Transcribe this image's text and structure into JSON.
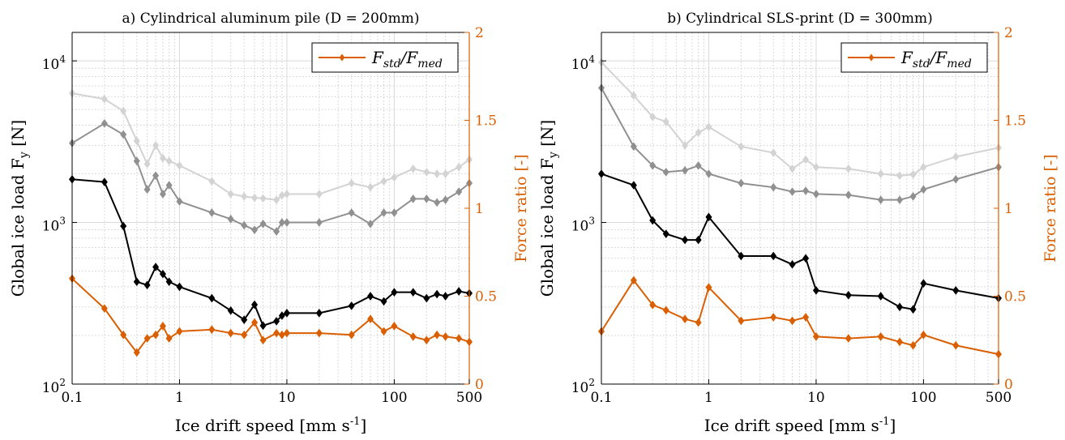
{
  "chart_data": [
    {
      "type": "line",
      "title": "a) Cylindrical aluminum pile (D = 200mm)",
      "xlabel": "Ice drift speed [mm s-1]",
      "ylabel": "Global ice load Fy [N]",
      "ylabel_right": "Force ratio [-]",
      "x_scale": "log",
      "y_scale": "log",
      "xlim": [
        0.1,
        500
      ],
      "ylim": [
        100,
        15000
      ],
      "ylim_right": [
        0,
        2
      ],
      "x_ticks": [
        "0.1",
        "1",
        "10",
        "100",
        "500"
      ],
      "y_ticks": [
        "10",
        "10",
        "10"
      ],
      "y_tick_exponents": [
        "2",
        "3",
        "4"
      ],
      "y_right_ticks": [
        "0",
        "0.5",
        "1",
        "1.5",
        "2"
      ],
      "grid": true,
      "legend": {
        "position": "top-right",
        "entries": [
          "Fstd/Fmed"
        ]
      },
      "series": [
        {
          "axis": "left",
          "color": "#d3d3d3",
          "marker": "diamond",
          "points": [
            [
              0.1,
              6300
            ],
            [
              0.2,
              5800
            ],
            [
              0.3,
              4900
            ],
            [
              0.4,
              3200
            ],
            [
              0.5,
              2300
            ],
            [
              0.6,
              3000
            ],
            [
              0.7,
              2500
            ],
            [
              0.8,
              2400
            ],
            [
              1,
              2250
            ],
            [
              2,
              1800
            ],
            [
              3,
              1500
            ],
            [
              4,
              1450
            ],
            [
              5,
              1420
            ],
            [
              6,
              1410
            ],
            [
              8,
              1380
            ],
            [
              9,
              1470
            ],
            [
              10,
              1500
            ],
            [
              20,
              1500
            ],
            [
              40,
              1750
            ],
            [
              60,
              1650
            ],
            [
              80,
              1800
            ],
            [
              100,
              1900
            ],
            [
              150,
              2150
            ],
            [
              200,
              2050
            ],
            [
              250,
              2000
            ],
            [
              300,
              2000
            ],
            [
              400,
              2200
            ],
            [
              500,
              2450
            ]
          ]
        },
        {
          "axis": "left",
          "color": "#909090",
          "marker": "diamond",
          "points": [
            [
              0.1,
              3100
            ],
            [
              0.2,
              4100
            ],
            [
              0.3,
              3500
            ],
            [
              0.4,
              2400
            ],
            [
              0.5,
              1600
            ],
            [
              0.6,
              1950
            ],
            [
              0.7,
              1500
            ],
            [
              0.8,
              1700
            ],
            [
              1,
              1350
            ],
            [
              2,
              1150
            ],
            [
              3,
              1050
            ],
            [
              4,
              960
            ],
            [
              5,
              900
            ],
            [
              6,
              980
            ],
            [
              8,
              880
            ],
            [
              9,
              1000
            ],
            [
              10,
              1000
            ],
            [
              20,
              1000
            ],
            [
              40,
              1150
            ],
            [
              60,
              980
            ],
            [
              80,
              1150
            ],
            [
              100,
              1150
            ],
            [
              150,
              1400
            ],
            [
              200,
              1400
            ],
            [
              250,
              1330
            ],
            [
              300,
              1380
            ],
            [
              400,
              1550
            ],
            [
              500,
              1750
            ]
          ]
        },
        {
          "axis": "left",
          "color": "#000000",
          "marker": "diamond",
          "points": [
            [
              0.1,
              1850
            ],
            [
              0.2,
              1780
            ],
            [
              0.3,
              950
            ],
            [
              0.4,
              430
            ],
            [
              0.5,
              410
            ],
            [
              0.6,
              530
            ],
            [
              0.7,
              480
            ],
            [
              0.8,
              430
            ],
            [
              1,
              400
            ],
            [
              2,
              340
            ],
            [
              3,
              285
            ],
            [
              4,
              250
            ],
            [
              5,
              310
            ],
            [
              6,
              230
            ],
            [
              8,
              245
            ],
            [
              9,
              265
            ],
            [
              10,
              275
            ],
            [
              20,
              275
            ],
            [
              40,
              305
            ],
            [
              60,
              350
            ],
            [
              80,
              325
            ],
            [
              100,
              370
            ],
            [
              150,
              370
            ],
            [
              200,
              340
            ],
            [
              250,
              360
            ],
            [
              300,
              350
            ],
            [
              400,
              375
            ],
            [
              500,
              365
            ]
          ]
        },
        {
          "axis": "right",
          "name": "Fstd/Fmed",
          "color": "#d95f02",
          "marker": "diamond",
          "points": [
            [
              0.1,
              0.6
            ],
            [
              0.2,
              0.43
            ],
            [
              0.3,
              0.28
            ],
            [
              0.4,
              0.18
            ],
            [
              0.5,
              0.26
            ],
            [
              0.6,
              0.28
            ],
            [
              0.7,
              0.33
            ],
            [
              0.8,
              0.26
            ],
            [
              1,
              0.3
            ],
            [
              2,
              0.31
            ],
            [
              3,
              0.29
            ],
            [
              4,
              0.28
            ],
            [
              5,
              0.35
            ],
            [
              6,
              0.25
            ],
            [
              8,
              0.29
            ],
            [
              9,
              0.28
            ],
            [
              10,
              0.29
            ],
            [
              20,
              0.29
            ],
            [
              40,
              0.28
            ],
            [
              60,
              0.37
            ],
            [
              80,
              0.3
            ],
            [
              100,
              0.33
            ],
            [
              150,
              0.27
            ],
            [
              200,
              0.25
            ],
            [
              250,
              0.28
            ],
            [
              300,
              0.27
            ],
            [
              400,
              0.26
            ],
            [
              500,
              0.24
            ]
          ]
        }
      ]
    },
    {
      "type": "line",
      "title": "b) Cylindrical SLS-print (D = 300mm)",
      "xlabel": "Ice drift speed [mm s-1]",
      "ylabel": "Global ice load Fy [N]",
      "ylabel_right": "Force ratio [-]",
      "x_scale": "log",
      "y_scale": "log",
      "xlim": [
        0.1,
        500
      ],
      "ylim": [
        100,
        15000
      ],
      "ylim_right": [
        0,
        2
      ],
      "x_ticks": [
        "0.1",
        "1",
        "10",
        "100",
        "500"
      ],
      "y_ticks": [
        "10",
        "10",
        "10"
      ],
      "y_tick_exponents": [
        "2",
        "3",
        "4"
      ],
      "y_right_ticks": [
        "0",
        "0.5",
        "1",
        "1.5",
        "2"
      ],
      "grid": true,
      "legend": {
        "position": "top-right",
        "entries": [
          "Fstd/Fmed"
        ]
      },
      "series": [
        {
          "axis": "left",
          "color": "#d3d3d3",
          "marker": "diamond",
          "points": [
            [
              0.1,
              9800
            ],
            [
              0.2,
              6100
            ],
            [
              0.3,
              4500
            ],
            [
              0.4,
              4200
            ],
            [
              0.6,
              3000
            ],
            [
              0.8,
              3600
            ],
            [
              1,
              3900
            ],
            [
              2,
              2950
            ],
            [
              4,
              2700
            ],
            [
              6,
              2150
            ],
            [
              8,
              2450
            ],
            [
              10,
              2200
            ],
            [
              20,
              2150
            ],
            [
              40,
              2000
            ],
            [
              60,
              1950
            ],
            [
              80,
              1980
            ],
            [
              100,
              2200
            ],
            [
              200,
              2550
            ],
            [
              500,
              2900
            ]
          ]
        },
        {
          "axis": "left",
          "color": "#909090",
          "marker": "diamond",
          "points": [
            [
              0.1,
              6800
            ],
            [
              0.2,
              2950
            ],
            [
              0.3,
              2250
            ],
            [
              0.4,
              2050
            ],
            [
              0.6,
              2100
            ],
            [
              0.8,
              2250
            ],
            [
              1,
              2000
            ],
            [
              2,
              1750
            ],
            [
              4,
              1650
            ],
            [
              6,
              1550
            ],
            [
              8,
              1570
            ],
            [
              10,
              1500
            ],
            [
              20,
              1480
            ],
            [
              40,
              1380
            ],
            [
              60,
              1380
            ],
            [
              80,
              1450
            ],
            [
              100,
              1600
            ],
            [
              200,
              1850
            ],
            [
              500,
              2200
            ]
          ]
        },
        {
          "axis": "left",
          "color": "#000000",
          "marker": "diamond",
          "points": [
            [
              0.1,
              2000
            ],
            [
              0.2,
              1700
            ],
            [
              0.3,
              1030
            ],
            [
              0.4,
              850
            ],
            [
              0.6,
              780
            ],
            [
              0.8,
              780
            ],
            [
              1,
              1080
            ],
            [
              2,
              620
            ],
            [
              4,
              620
            ],
            [
              6,
              550
            ],
            [
              8,
              600
            ],
            [
              10,
              380
            ],
            [
              20,
              355
            ],
            [
              40,
              350
            ],
            [
              60,
              300
            ],
            [
              80,
              290
            ],
            [
              100,
              420
            ],
            [
              200,
              380
            ],
            [
              500,
              340
            ]
          ]
        },
        {
          "axis": "right",
          "name": "Fstd/Fmed",
          "color": "#d95f02",
          "marker": "diamond",
          "points": [
            [
              0.1,
              0.3
            ],
            [
              0.2,
              0.59
            ],
            [
              0.3,
              0.45
            ],
            [
              0.4,
              0.42
            ],
            [
              0.6,
              0.37
            ],
            [
              0.8,
              0.35
            ],
            [
              1,
              0.55
            ],
            [
              2,
              0.36
            ],
            [
              4,
              0.38
            ],
            [
              6,
              0.36
            ],
            [
              8,
              0.38
            ],
            [
              10,
              0.27
            ],
            [
              20,
              0.26
            ],
            [
              40,
              0.27
            ],
            [
              60,
              0.24
            ],
            [
              80,
              0.22
            ],
            [
              100,
              0.28
            ],
            [
              200,
              0.22
            ],
            [
              500,
              0.17
            ]
          ]
        }
      ]
    }
  ]
}
